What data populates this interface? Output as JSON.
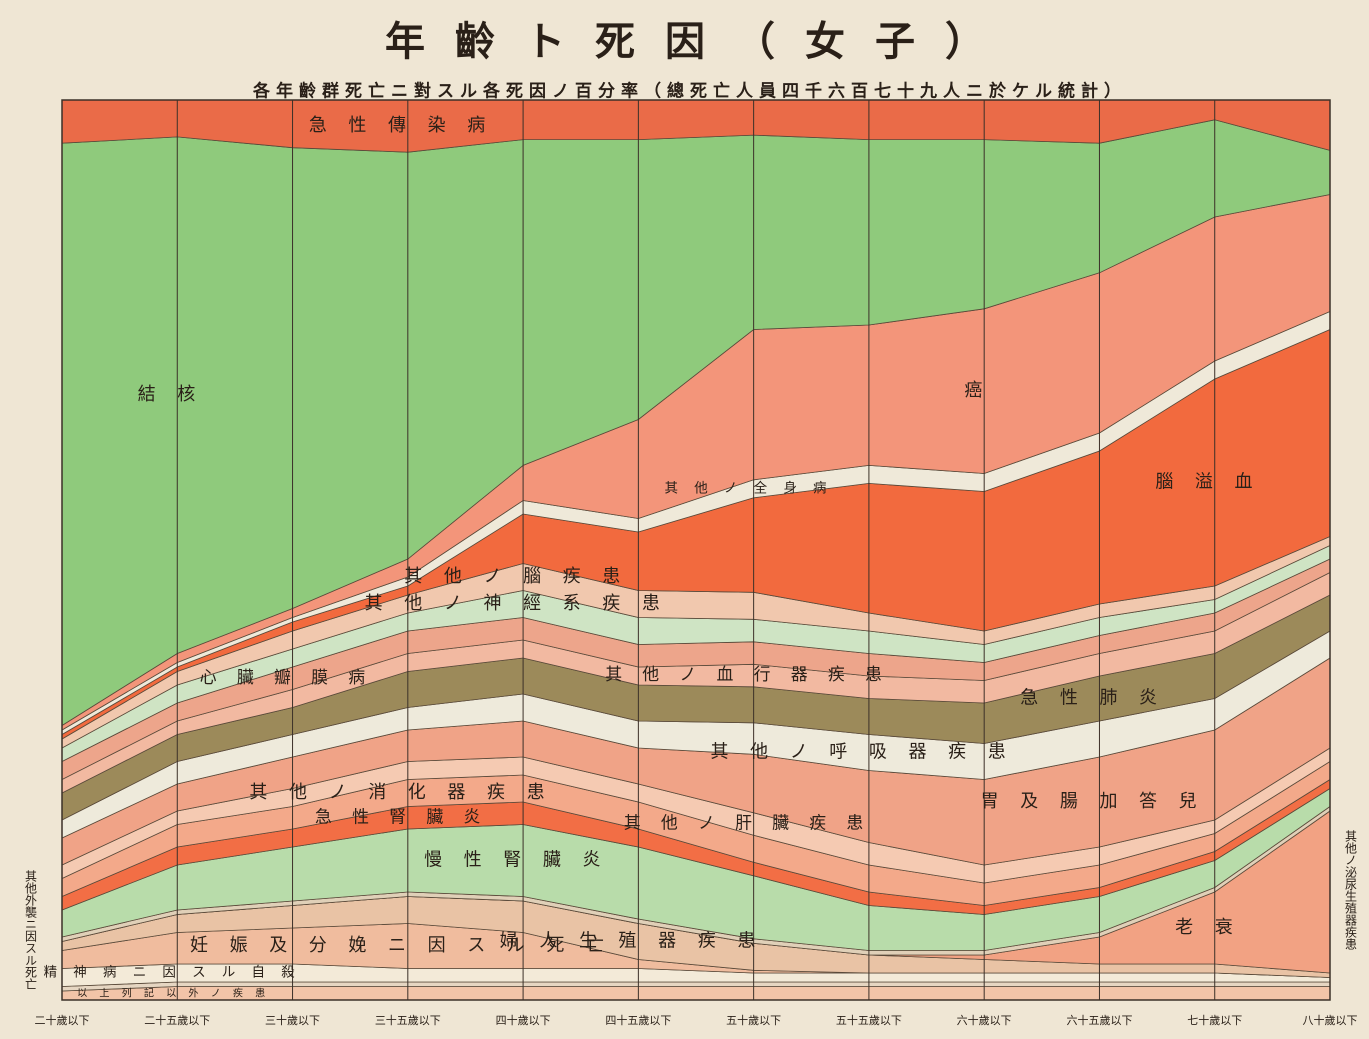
{
  "chart_data": {
    "type": "stacked_area",
    "title": "年齡ト死因（女子）",
    "subtitle": "各年齡群死亡ニ對スル各死因ノ百分率（總死亡人員四千六百七十九人ニ於ケル統計）",
    "categories": [
      "二十歲以下",
      "二十五歲以下",
      "三十歲以下",
      "三十五歲以下",
      "四十歲以下",
      "四十五歲以下",
      "五十歲以下",
      "五十五歲以下",
      "六十歲以下",
      "六十五歲以下",
      "七十歲以下",
      "八十歲以下"
    ],
    "ylim": [
      0,
      100
    ],
    "series": [
      {
        "name": "以上列記以外ノ疾患",
        "color": "#f2c4a8",
        "values": [
          1,
          1.5,
          1.5,
          1.5,
          1.5,
          1.5,
          1.5,
          1.5,
          1.5,
          1.5,
          1.5,
          1.5
        ]
      },
      {
        "name": "其他外襲ニ因スル死亡",
        "color": "#e6d6c2",
        "values": [
          0.5,
          0.5,
          0.5,
          0.5,
          0.5,
          0.5,
          0.5,
          0.5,
          0.5,
          0.5,
          0.5,
          0.5
        ]
      },
      {
        "name": "精神病ニ因スル自殺",
        "color": "#f3ead8",
        "values": [
          2,
          2,
          2,
          1.5,
          1.5,
          1.5,
          1,
          1,
          1,
          1,
          1,
          0.5
        ]
      },
      {
        "name": "妊娠及分娩ニ因スル死亡",
        "color": "#f0bc9e",
        "values": [
          2,
          3.5,
          4,
          5,
          4,
          1,
          0.3,
          0,
          0,
          0,
          0,
          0
        ]
      },
      {
        "name": "婦人生殖器疾患",
        "color": "#e9c3a5",
        "values": [
          1,
          2,
          2.5,
          3,
          3.5,
          4,
          3,
          2,
          1.5,
          1,
          1,
          0.5
        ]
      },
      {
        "name": "老衰",
        "color": "#f2a283",
        "values": [
          0,
          0,
          0,
          0,
          0,
          0,
          0,
          0,
          0.5,
          3,
          8,
          18
        ]
      },
      {
        "name": "其他ノ泌尿生殖器疾患",
        "color": "#e0d0b8",
        "values": [
          0.5,
          0.5,
          0.5,
          0.5,
          0.5,
          0.5,
          0.5,
          0.5,
          0.5,
          0.5,
          0.5,
          0.5
        ]
      },
      {
        "name": "慢性腎臟炎",
        "color": "#b8dcaa",
        "values": [
          3,
          5,
          6,
          7,
          8,
          8,
          7,
          5,
          4,
          4,
          3,
          2
        ]
      },
      {
        "name": "急性腎臟炎",
        "color": "#f26e45",
        "values": [
          1.5,
          2,
          2,
          2.5,
          2.5,
          2,
          1.5,
          1.5,
          1,
          1,
          1,
          1
        ]
      },
      {
        "name": "其他ノ消化器疾患",
        "color": "#f3a98a",
        "values": [
          2,
          2.5,
          2.5,
          3,
          3,
          3,
          3,
          3,
          2.5,
          2.5,
          2,
          2
        ]
      },
      {
        "name": "其他ノ肝臟疾患",
        "color": "#f5cab2",
        "values": [
          1.5,
          1.5,
          2,
          2,
          2,
          2,
          2.5,
          2.5,
          2,
          2,
          1.5,
          1.5
        ]
      },
      {
        "name": "胃及腸加答兒",
        "color": "#f0a387",
        "values": [
          3,
          3,
          3.5,
          3.5,
          4,
          4,
          6.5,
          8,
          9.5,
          10,
          10,
          10
        ]
      },
      {
        "name": "其他ノ呼吸器疾患",
        "color": "#eeeadb",
        "values": [
          2,
          2.5,
          2.5,
          2.5,
          3,
          3,
          3.5,
          4,
          4,
          4,
          3.5,
          3
        ]
      },
      {
        "name": "急性肺炎",
        "color": "#9c8a5a",
        "values": [
          3,
          3,
          3,
          4,
          4,
          4,
          4,
          4,
          4.5,
          5,
          5,
          4
        ]
      },
      {
        "name": "其他ノ血行器疾患",
        "color": "#f2b9a1",
        "values": [
          1.5,
          1.5,
          2,
          2,
          2,
          2,
          2.5,
          2.5,
          2.5,
          2.5,
          2.5,
          2.5
        ]
      },
      {
        "name": "心臟瓣膜病",
        "color": "#eda58b",
        "values": [
          2,
          2,
          2.5,
          2.5,
          2.5,
          2.5,
          2.5,
          2.5,
          2,
          2,
          2,
          1.5
        ]
      },
      {
        "name": "其他ノ神經系疾患",
        "color": "#cfe4c4",
        "values": [
          1.5,
          2,
          2,
          2,
          3,
          3,
          2.5,
          2.5,
          2,
          2,
          1.5,
          1.5
        ]
      },
      {
        "name": "其他ノ腦疾患",
        "color": "#f1c8ae",
        "values": [
          1,
          1.5,
          2,
          2,
          3,
          3,
          3,
          2,
          1.5,
          1.5,
          1.5,
          1
        ]
      },
      {
        "name": "腦溢血",
        "color": "#f26a3e",
        "values": [
          0.5,
          0.5,
          1,
          1,
          5.5,
          6.5,
          10.5,
          14.4,
          15.5,
          17,
          23,
          23
        ]
      },
      {
        "name": "其他ノ全身病",
        "color": "#efe9d9",
        "values": [
          0.5,
          0.5,
          0.5,
          1,
          1.5,
          1.5,
          2,
          2,
          2,
          2,
          2,
          2
        ]
      },
      {
        "name": "癌",
        "color": "#f3957a",
        "values": [
          0.5,
          1,
          1,
          2,
          3.9,
          11,
          16.7,
          15.6,
          18.3,
          17.8,
          16,
          13
        ]
      },
      {
        "name": "結核",
        "color": "#8fca7c",
        "values": [
          64.7,
          57.4,
          51.2,
          45.2,
          36.2,
          31.1,
          21.6,
          20.6,
          18.8,
          14.4,
          10.8,
          4.9
        ]
      },
      {
        "name": "急性傳染病",
        "color": "#ea6b48",
        "values": [
          4.8,
          4.1,
          5.3,
          5.8,
          4.4,
          4.4,
          3.9,
          4.4,
          4.4,
          4.8,
          2.2,
          5.6
        ]
      }
    ]
  }
}
